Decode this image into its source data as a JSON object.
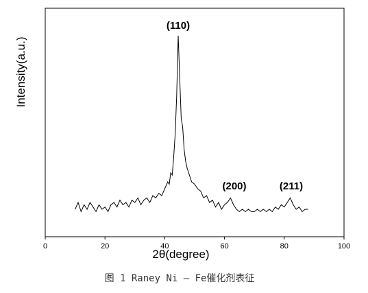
{
  "chart_data": {
    "type": "line",
    "x_label": "2θ(degree)",
    "y_label": "Intensity(a.u.)",
    "caption": "图 1  Raney Ni – Fe催化剂表征",
    "annotations": [
      "(110)",
      "(200)",
      "(211)"
    ],
    "xlim": [
      0,
      100
    ],
    "xticks": [
      0,
      20,
      40,
      60,
      80,
      100
    ],
    "ylim": [
      0,
      100
    ],
    "grid": false,
    "x": [
      10,
      11,
      12,
      13,
      14,
      15,
      16,
      17,
      18,
      19,
      20,
      21,
      22,
      23,
      24,
      25,
      26,
      27,
      28,
      29,
      30,
      31,
      32,
      33,
      34,
      35,
      36,
      37,
      38,
      39,
      40,
      41,
      41.5,
      42,
      42.5,
      43,
      43.5,
      44,
      44.5,
      45,
      45.5,
      46,
      46.5,
      47,
      47.5,
      48,
      49,
      50,
      51,
      52,
      53,
      54,
      55,
      56,
      57,
      58,
      59,
      60,
      61,
      62,
      63,
      64,
      65,
      66,
      67,
      68,
      69,
      70,
      71,
      72,
      73,
      74,
      75,
      76,
      77,
      78,
      79,
      80,
      81,
      82,
      83,
      84,
      85,
      86,
      87,
      88
    ],
    "series": [
      {
        "color": "#000000",
        "values": [
          12,
          15,
          11,
          14,
          12,
          15,
          13,
          11,
          14,
          12,
          13,
          11,
          14,
          15,
          13,
          16,
          14,
          15,
          13,
          16,
          15,
          17,
          14,
          16,
          17,
          15,
          18,
          17,
          19,
          18,
          21,
          24,
          23,
          28,
          27,
          35,
          45,
          62,
          88,
          70,
          52,
          48,
          38,
          33,
          30,
          28,
          24,
          23,
          21,
          20,
          17,
          18,
          15,
          16,
          13,
          15,
          12,
          14,
          15,
          17,
          14,
          12,
          11,
          12,
          11,
          12,
          11,
          11,
          12,
          11,
          12,
          11,
          12,
          11,
          13,
          12,
          14,
          13,
          15,
          17,
          14,
          12,
          13,
          11,
          12,
          12
        ]
      }
    ]
  }
}
